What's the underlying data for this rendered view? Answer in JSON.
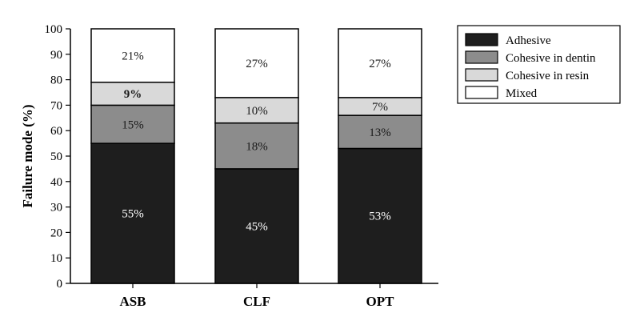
{
  "chart_data": {
    "type": "bar",
    "stacked": true,
    "title": "",
    "xlabel": "",
    "ylabel": "Failure mode (%)",
    "ylim": [
      0,
      100
    ],
    "yticks": [
      0,
      10,
      20,
      30,
      40,
      50,
      60,
      70,
      80,
      90,
      100
    ],
    "categories": [
      "ASB",
      "CLF",
      "OPT"
    ],
    "series": [
      {
        "name": "Adhesive",
        "values": [
          55,
          45,
          53
        ],
        "labels": [
          "55%",
          "45%",
          "53%"
        ],
        "color": "#1e1e1e",
        "label_color": "#ffffff",
        "label_bold": false
      },
      {
        "name": "Cohesive in dentin",
        "values": [
          15,
          18,
          13
        ],
        "labels": [
          "15%",
          "18%",
          "13%"
        ],
        "color": "#8c8c8c",
        "label_color": "#1a1a1a",
        "label_bold": false
      },
      {
        "name": "Cohesive in resin",
        "values": [
          9,
          10,
          7
        ],
        "labels": [
          "9%",
          "10%",
          "7%"
        ],
        "color": "#d9d9d9",
        "label_color": "#1a1a1a",
        "label_bold": false
      },
      {
        "name": "Mixed",
        "values": [
          21,
          27,
          27
        ],
        "labels": [
          "21%",
          "27%",
          "27%"
        ],
        "color": "#ffffff",
        "label_color": "#1a1a1a",
        "label_bold": false
      }
    ],
    "bold_labels": [
      [
        2,
        0
      ]
    ],
    "grid": false,
    "legend_position": "top-right"
  }
}
